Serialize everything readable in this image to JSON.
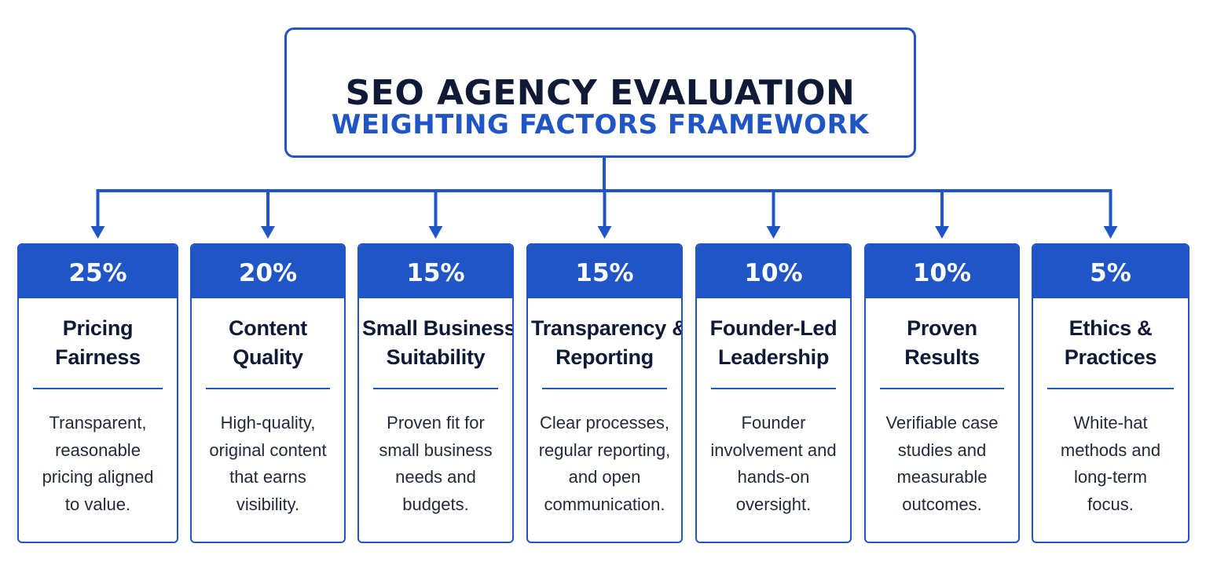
{
  "title": "SEO AGENCY EVALUATION",
  "subtitle": "WEIGHTING FACTORS FRAMEWORK",
  "colors": {
    "accent": "#1f55c4",
    "heading": "#0f1b36",
    "body_text": "#222a3a",
    "background": "#ffffff"
  },
  "factors": [
    {
      "weight": "25%",
      "title_lines": [
        "Pricing",
        "Fairness"
      ],
      "desc_lines": [
        "Transparent,",
        "reasonable",
        "pricing aligned",
        "to value."
      ]
    },
    {
      "weight": "20%",
      "title_lines": [
        "Content",
        "Quality"
      ],
      "desc_lines": [
        "High-quality,",
        "original content",
        "that earns",
        "visibility."
      ]
    },
    {
      "weight": "15%",
      "title_lines": [
        "Small Business",
        "Suitability"
      ],
      "desc_lines": [
        "Proven fit for",
        "small business",
        "needs and",
        "budgets."
      ]
    },
    {
      "weight": "15%",
      "title_lines": [
        "Transparency &",
        "Reporting"
      ],
      "desc_lines": [
        "Clear processes,",
        "regular reporting,",
        "and open",
        "communication."
      ]
    },
    {
      "weight": "10%",
      "title_lines": [
        "Founder-Led",
        "Leadership"
      ],
      "desc_lines": [
        "Founder",
        "involvement and",
        "hands-on",
        "oversight."
      ]
    },
    {
      "weight": "10%",
      "title_lines": [
        "Proven",
        "Results"
      ],
      "desc_lines": [
        "Verifiable case",
        "studies and",
        "measurable",
        "outcomes."
      ]
    },
    {
      "weight": "5%",
      "title_lines": [
        "Ethics &",
        "Practices"
      ],
      "desc_lines": [
        "White-hat",
        "methods and",
        "long-term",
        "focus."
      ]
    }
  ]
}
